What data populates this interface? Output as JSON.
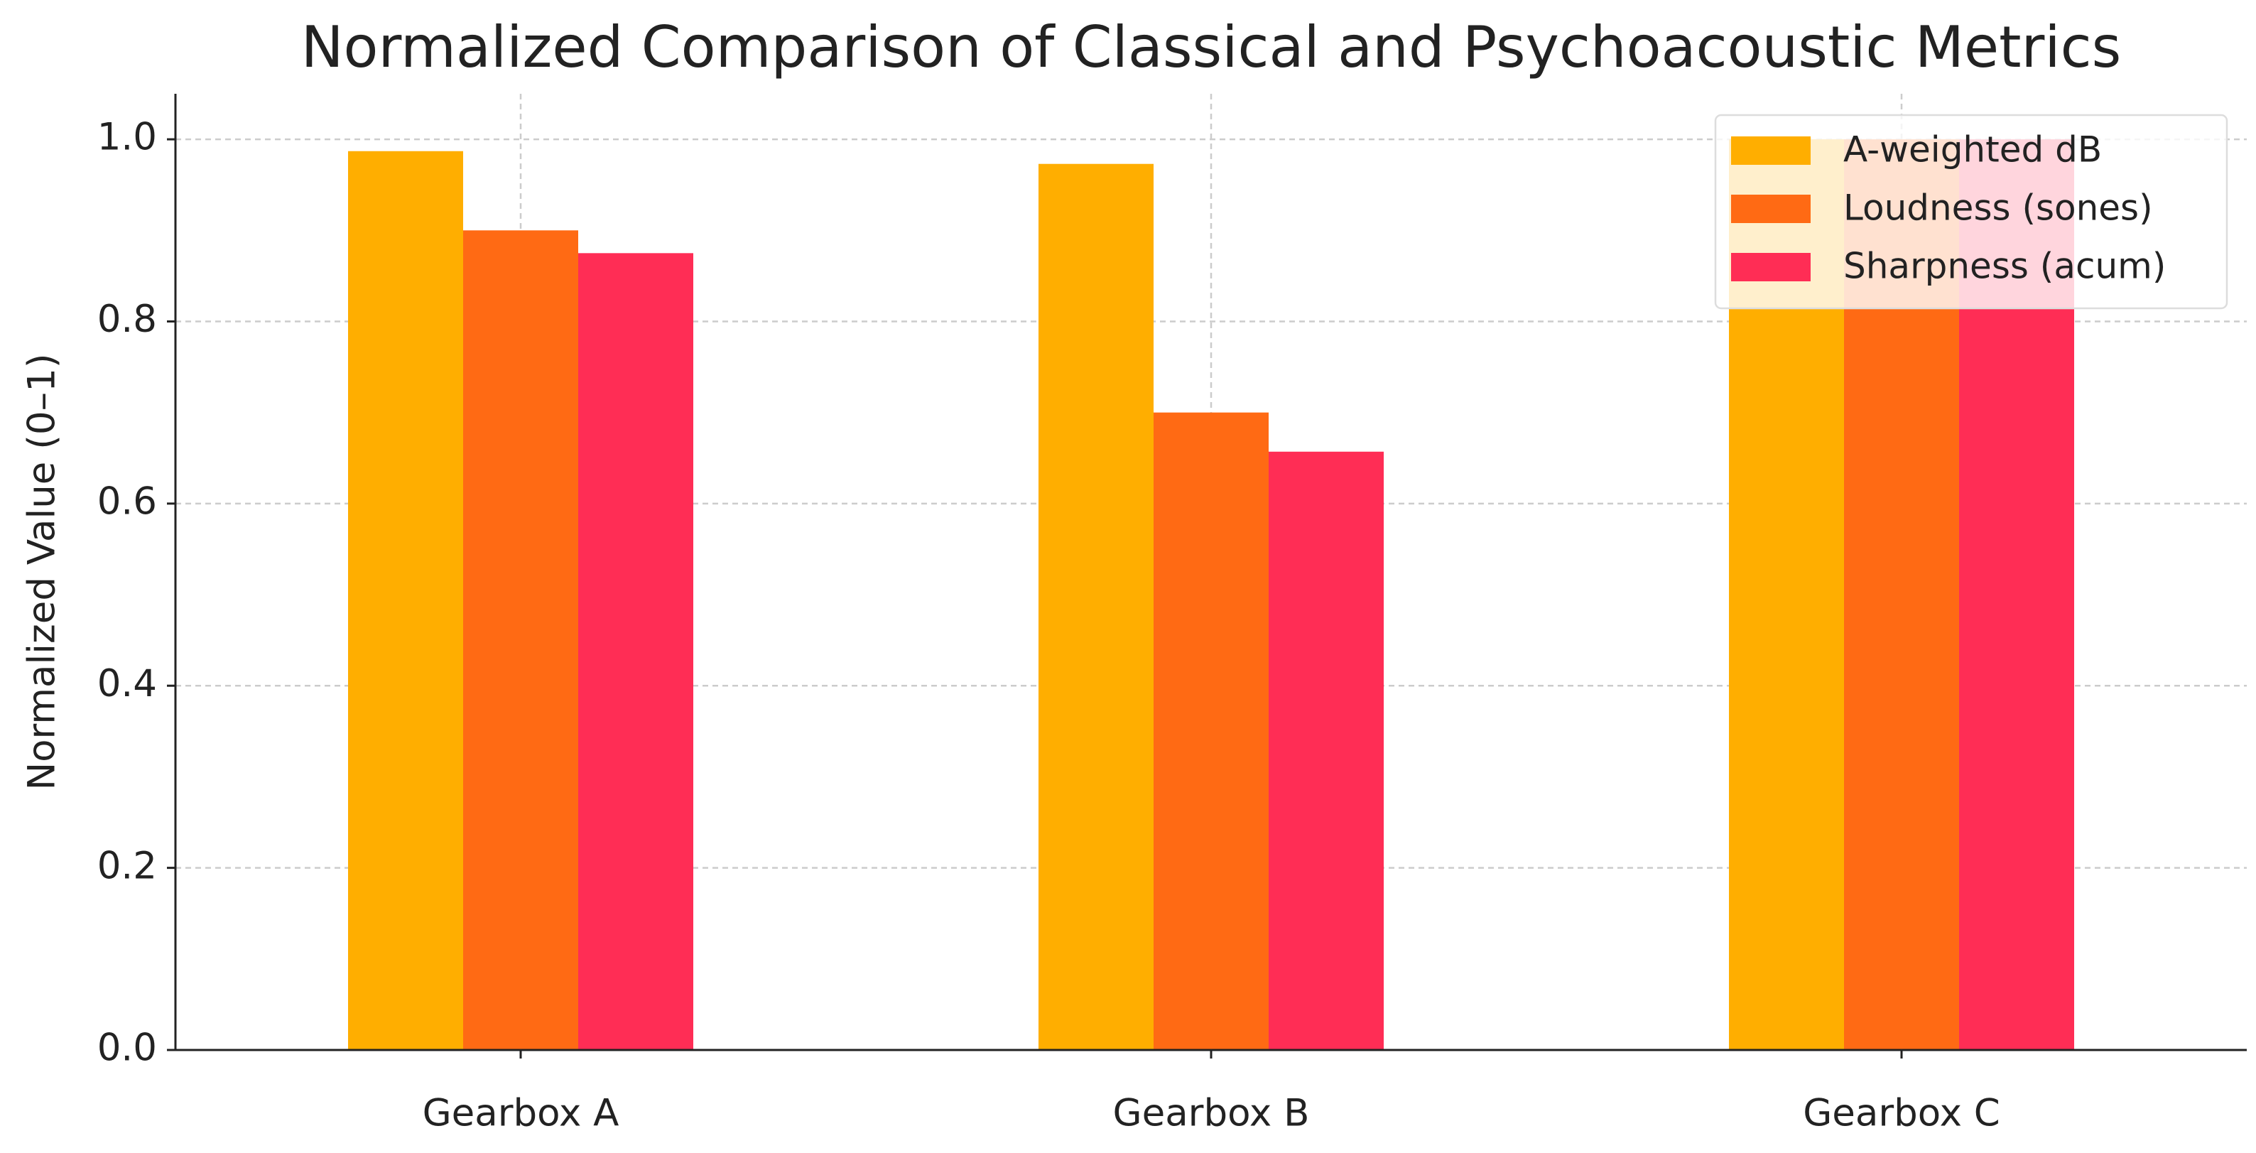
{
  "chart_data": {
    "type": "bar",
    "title": "Normalized Comparison of Classical and Psychoacoustic Metrics",
    "y_label": "Normalized Value (0–1)",
    "categories": [
      "Gearbox A",
      "Gearbox B",
      "Gearbox C"
    ],
    "series": [
      {
        "name": "A-weighted dB",
        "color": "#ffae00",
        "values": [
          0.987,
          0.973,
          1.0
        ]
      },
      {
        "name": "Loudness (sones)",
        "color": "#ff6a14",
        "values": [
          0.9,
          0.7,
          1.0
        ]
      },
      {
        "name": "Sharpness (acum)",
        "color": "#ff2d55",
        "values": [
          0.875,
          0.657,
          1.0
        ]
      }
    ],
    "ylim": [
      0,
      1.05
    ],
    "yticks": [
      {
        "value": 0,
        "label": "0.0"
      },
      {
        "value": 0.2,
        "label": "0.2"
      },
      {
        "value": 0.4,
        "label": "0.4"
      },
      {
        "value": 0.6,
        "label": "0.6"
      },
      {
        "value": 0.8,
        "label": "0.8"
      },
      {
        "value": 1,
        "label": "1.0"
      }
    ],
    "grid": true,
    "legend": "upper right"
  }
}
